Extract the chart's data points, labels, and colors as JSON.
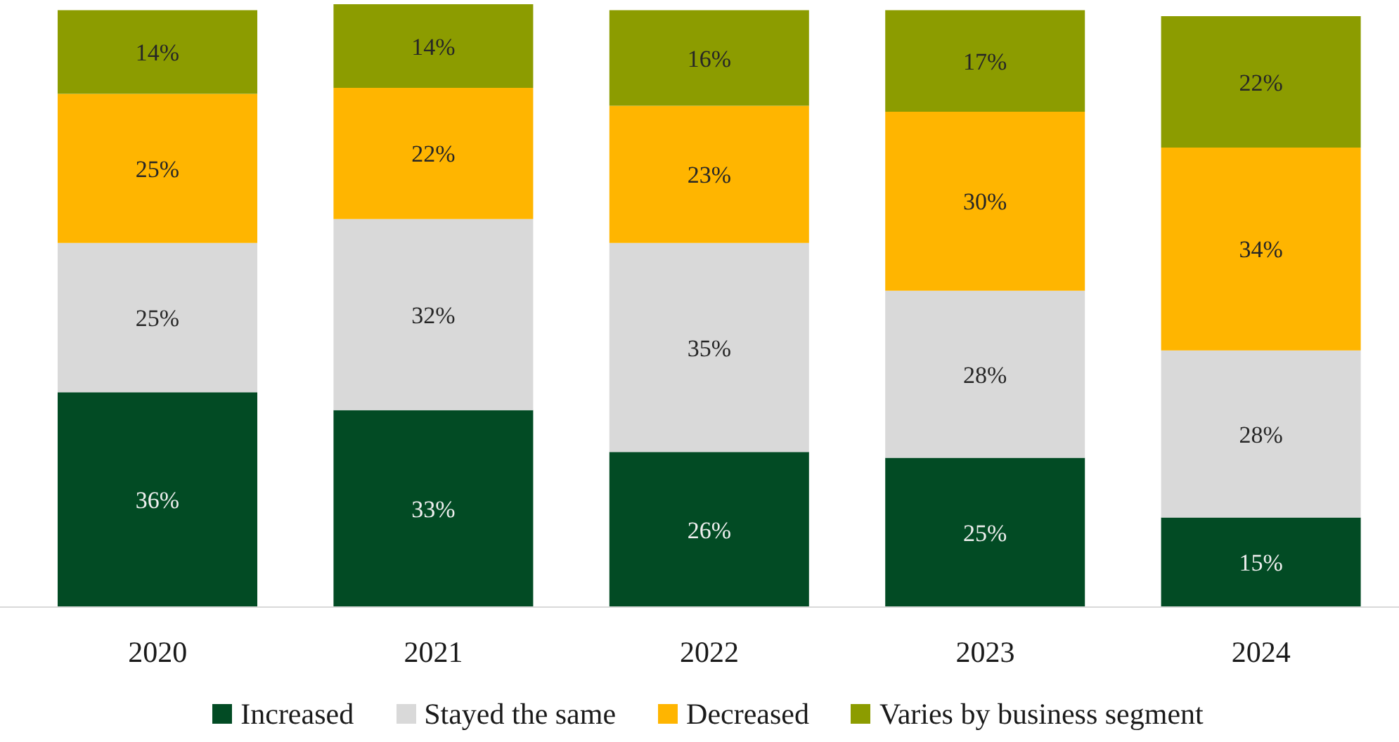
{
  "chart_data": {
    "type": "bar",
    "stacked": true,
    "legend": "bottom",
    "categories": [
      "2020",
      "2021",
      "2022",
      "2023",
      "2024"
    ],
    "series": [
      {
        "name": "Increased",
        "color": "#024b24",
        "values": [
          36,
          33,
          26,
          25,
          15
        ],
        "value_labels": [
          "36%",
          "33%",
          "26%",
          "25%",
          "15%"
        ]
      },
      {
        "name": "Stayed the same",
        "color": "#d9d9d9",
        "values": [
          25,
          32,
          35,
          28,
          28
        ],
        "value_labels": [
          "25%",
          "32%",
          "35%",
          "28%",
          "28%"
        ]
      },
      {
        "name": "Decreased",
        "color": "#ffb500",
        "values": [
          25,
          22,
          23,
          30,
          34
        ],
        "value_labels": [
          "25%",
          "22%",
          "23%",
          "30%",
          "34%"
        ]
      },
      {
        "name": "Varies by business segment",
        "color": "#8c9c00",
        "values": [
          14,
          14,
          16,
          17,
          22
        ],
        "value_labels": [
          "14%",
          "14%",
          "16%",
          "17%",
          "22%"
        ]
      }
    ]
  }
}
